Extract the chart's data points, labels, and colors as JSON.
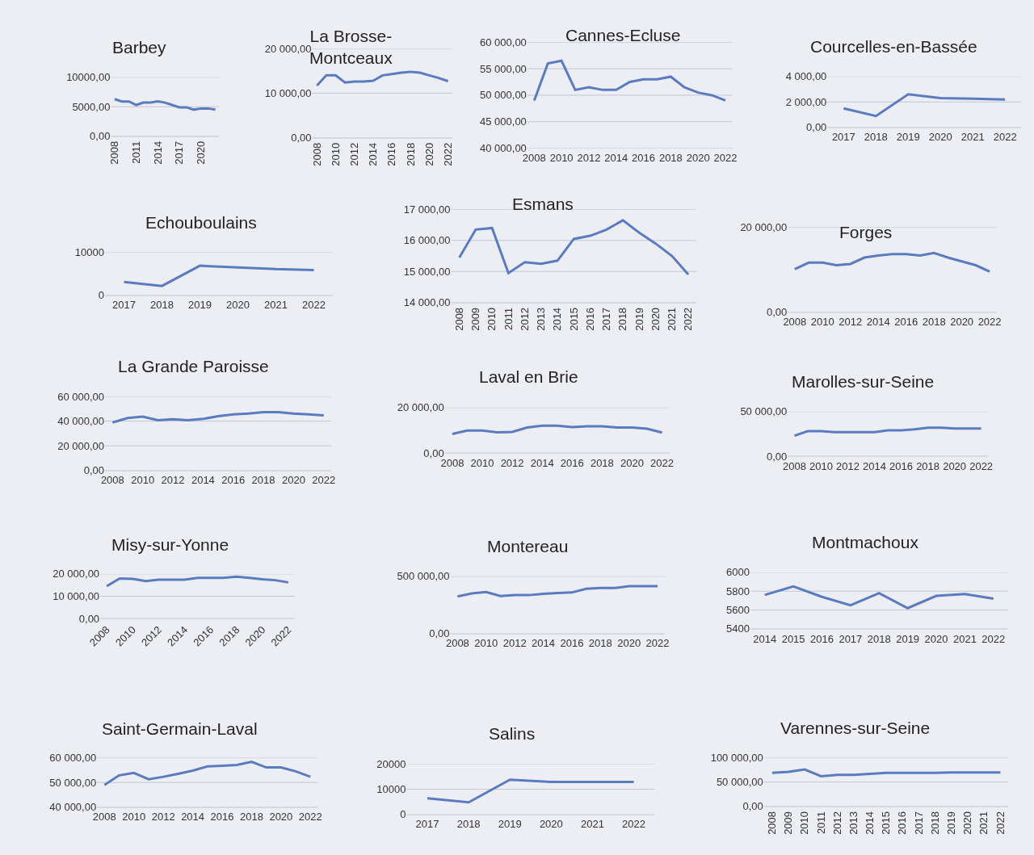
{
  "chart_data": [
    {
      "type": "line",
      "title": "Barbey",
      "x": [
        2008,
        2009,
        2010,
        2011,
        2012,
        2013,
        2014,
        2015,
        2016,
        2017,
        2018,
        2019,
        2020,
        2021,
        2022
      ],
      "values": [
        6300,
        5900,
        5900,
        5300,
        5700,
        5700,
        5900,
        5700,
        5300,
        4900,
        4900,
        4500,
        4700,
        4700,
        4500
      ],
      "color": "#5b7bc0",
      "xlim": [
        2007.5,
        2022.5
      ],
      "xticks": [
        2008,
        2011,
        2014,
        2017,
        2020
      ],
      "ylim": [
        0,
        10000
      ],
      "yticks": [
        {
          "value": 0,
          "label": "0,00"
        },
        {
          "value": 5000,
          "label": "5000,00"
        },
        {
          "value": 10000,
          "label": "10000,00"
        }
      ],
      "grid": "y"
    },
    {
      "type": "line",
      "title": "La Brosse-\nMontceaux",
      "x": [
        2008,
        2009,
        2010,
        2011,
        2012,
        2013,
        2014,
        2015,
        2016,
        2017,
        2018,
        2019,
        2020,
        2021,
        2022
      ],
      "values": [
        11700,
        14000,
        14000,
        12400,
        12600,
        12600,
        12800,
        14000,
        14300,
        14600,
        14800,
        14600,
        14000,
        13400,
        12700
      ],
      "color": "#5b7bc0",
      "xlim": [
        2007.5,
        2022.5
      ],
      "xticks": [
        2008,
        2010,
        2012,
        2014,
        2016,
        2018,
        2020,
        2022
      ],
      "ylim": [
        0,
        20000
      ],
      "yticks": [
        {
          "value": 0,
          "label": "0,00"
        },
        {
          "value": 10000,
          "label": "10 000,00"
        },
        {
          "value": 20000,
          "label": "20 000,00"
        }
      ],
      "grid": "y"
    },
    {
      "type": "line",
      "title": "Cannes-Ecluse",
      "x": [
        2008,
        2009,
        2010,
        2011,
        2012,
        2013,
        2014,
        2015,
        2016,
        2017,
        2018,
        2019,
        2020,
        2021,
        2022
      ],
      "values": [
        49000,
        56000,
        56500,
        51000,
        51500,
        51000,
        51000,
        52500,
        53000,
        53000,
        53500,
        51500,
        50500,
        50000,
        49000
      ],
      "color": "#5b7bc0",
      "xlim": [
        2007.5,
        2022.5
      ],
      "xticks": [
        2008,
        2010,
        2012,
        2014,
        2016,
        2018,
        2020,
        2022
      ],
      "ylim": [
        40000,
        60000
      ],
      "yticks": [
        {
          "value": 40000,
          "label": "40 000,00"
        },
        {
          "value": 45000,
          "label": "45 000,00"
        },
        {
          "value": 50000,
          "label": "50 000,00"
        },
        {
          "value": 55000,
          "label": "55 000,00"
        },
        {
          "value": 60000,
          "label": "60 000,00"
        }
      ],
      "grid": "y"
    },
    {
      "type": "line",
      "title": "Courcelles-en-Bassée",
      "x": [
        2017,
        2018,
        2019,
        2020,
        2021,
        2022
      ],
      "values": [
        1500,
        900,
        2600,
        2300,
        2250,
        2200
      ],
      "color": "#5b7bc0",
      "xlim": [
        2016.5,
        2022.5
      ],
      "xticks": [
        2017,
        2018,
        2019,
        2020,
        2021,
        2022
      ],
      "ylim": [
        0,
        4000
      ],
      "yticks": [
        {
          "value": 0,
          "label": "0,00"
        },
        {
          "value": 2000,
          "label": "2 000,00"
        },
        {
          "value": 4000,
          "label": "4 000,00"
        }
      ],
      "grid": "y"
    },
    {
      "type": "line",
      "title": "Echouboulains",
      "x": [
        2017,
        2018,
        2019,
        2020,
        2021,
        2022
      ],
      "values": [
        3100,
        2200,
        6900,
        6500,
        6100,
        5900
      ],
      "color": "#5b7bc0",
      "xlim": [
        2016.5,
        2022.5
      ],
      "xticks": [
        2017,
        2018,
        2019,
        2020,
        2021,
        2022
      ],
      "ylim": [
        0,
        10000
      ],
      "yticks": [
        0,
        10000
      ],
      "grid": "y"
    },
    {
      "type": "line",
      "title": "Esmans",
      "x": [
        2008,
        2009,
        2010,
        2011,
        2012,
        2013,
        2014,
        2015,
        2016,
        2017,
        2018,
        2019,
        2020,
        2021,
        2022
      ],
      "values": [
        15450,
        16350,
        16400,
        14950,
        15300,
        15250,
        15350,
        16050,
        16150,
        16350,
        16650,
        16250,
        15900,
        15500,
        14900
      ],
      "color": "#5b7bc0",
      "xlim": [
        2007.5,
        2022.5
      ],
      "xticks": [
        2008,
        2009,
        2010,
        2011,
        2012,
        2013,
        2014,
        2015,
        2016,
        2017,
        2018,
        2019,
        2020,
        2021,
        2022
      ],
      "ylim": [
        14000,
        17000
      ],
      "yticks": [
        {
          "value": 14000,
          "label": "14 000,00"
        },
        {
          "value": 15000,
          "label": "15 000,00"
        },
        {
          "value": 16000,
          "label": "16 000,00"
        },
        {
          "value": 17000,
          "label": "17 000,00"
        }
      ],
      "grid": "y"
    },
    {
      "type": "line",
      "title": "Forges",
      "x": [
        2008,
        2009,
        2010,
        2011,
        2012,
        2013,
        2014,
        2015,
        2016,
        2017,
        2018,
        2019,
        2020,
        2021,
        2022
      ],
      "values": [
        10100,
        11600,
        11600,
        11000,
        11300,
        12800,
        13300,
        13600,
        13600,
        13300,
        13900,
        12800,
        11900,
        11000,
        9500
      ],
      "color": "#5b7bc0",
      "xlim": [
        2007.5,
        2022.5
      ],
      "xticks": [
        2008,
        2010,
        2012,
        2014,
        2016,
        2018,
        2020,
        2022
      ],
      "ylim": [
        0,
        20000
      ],
      "yticks": [
        {
          "value": 0,
          "label": "0,00"
        },
        {
          "value": 20000,
          "label": "20 000,00"
        }
      ],
      "grid": "y"
    },
    {
      "type": "line",
      "title": "La Grande Paroisse",
      "x": [
        2008,
        2009,
        2010,
        2011,
        2012,
        2013,
        2014,
        2015,
        2016,
        2017,
        2018,
        2019,
        2020,
        2021,
        2022
      ],
      "values": [
        38900,
        42500,
        43600,
        40700,
        41500,
        40700,
        41800,
        44000,
        45500,
        46200,
        47300,
        47300,
        46200,
        45500,
        44700
      ],
      "color": "#5b7bc0",
      "xlim": [
        2007.5,
        2022.5
      ],
      "xticks": [
        2008,
        2010,
        2012,
        2014,
        2016,
        2018,
        2020,
        2022
      ],
      "ylim": [
        0,
        60000
      ],
      "yticks": [
        {
          "value": 0,
          "label": "0,00"
        },
        {
          "value": 20000,
          "label": "20 000,00"
        },
        {
          "value": 40000,
          "label": "40 000,00"
        },
        {
          "value": 60000,
          "label": "60 000,00"
        }
      ],
      "grid": "y"
    },
    {
      "type": "line",
      "title": "Laval en Brie",
      "x": [
        2008,
        2009,
        2010,
        2011,
        2012,
        2013,
        2014,
        2015,
        2016,
        2017,
        2018,
        2019,
        2020,
        2021,
        2022
      ],
      "values": [
        8400,
        9900,
        9900,
        9100,
        9300,
        11200,
        12000,
        12000,
        11400,
        11800,
        11800,
        11200,
        11200,
        10700,
        9000
      ],
      "color": "#5b7bc0",
      "xlim": [
        2007.5,
        2022.5
      ],
      "xticks": [
        2008,
        2010,
        2012,
        2014,
        2016,
        2018,
        2020,
        2022
      ],
      "ylim": [
        0,
        20000
      ],
      "yticks": [
        {
          "value": 0,
          "label": "0,00"
        },
        {
          "value": 20000,
          "label": "20 000,00"
        }
      ],
      "grid": "y"
    },
    {
      "type": "line",
      "title": "Marolles-sur-Seine",
      "x": [
        2008,
        2009,
        2010,
        2011,
        2012,
        2013,
        2014,
        2015,
        2016,
        2017,
        2018,
        2019,
        2020,
        2021,
        2022
      ],
      "values": [
        23000,
        28000,
        28000,
        27000,
        27000,
        27000,
        27000,
        29000,
        29000,
        30000,
        32000,
        32000,
        31000,
        31000,
        31000
      ],
      "color": "#5b7bc0",
      "xlim": [
        2007.5,
        2022.5
      ],
      "xticks": [
        2008,
        2010,
        2012,
        2014,
        2016,
        2018,
        2020,
        2022
      ],
      "ylim": [
        0,
        50000
      ],
      "yticks": [
        {
          "value": 0,
          "label": "0,00"
        },
        {
          "value": 50000,
          "label": "50 000,00"
        }
      ],
      "grid": "y"
    },
    {
      "type": "line",
      "title": "Misy-sur-Yonne",
      "x": [
        2008,
        2009,
        2010,
        2011,
        2012,
        2013,
        2014,
        2015,
        2016,
        2017,
        2018,
        2019,
        2020,
        2021,
        2022
      ],
      "values": [
        14500,
        18000,
        17800,
        16800,
        17400,
        17400,
        17400,
        18200,
        18200,
        18200,
        18800,
        18200,
        17600,
        17200,
        16200
      ],
      "color": "#5b7bc0",
      "xlim": [
        2007.5,
        2022.5
      ],
      "xticks": [
        2008,
        2010,
        2012,
        2014,
        2016,
        2018,
        2020,
        2022
      ],
      "ylim": [
        0,
        20000
      ],
      "yticks": [
        {
          "value": 0,
          "label": "0,00"
        },
        {
          "value": 10000,
          "label": "10 000,00"
        },
        {
          "value": 20000,
          "label": "20 000,00"
        }
      ],
      "grid": "y"
    },
    {
      "type": "line",
      "title": "Montereau",
      "x": [
        2008,
        2009,
        2010,
        2011,
        2012,
        2013,
        2014,
        2015,
        2016,
        2017,
        2018,
        2019,
        2020,
        2021,
        2022
      ],
      "values": [
        324000,
        351000,
        363000,
        328000,
        336000,
        336000,
        348000,
        355000,
        359000,
        391000,
        398000,
        398000,
        414000,
        414000,
        414000
      ],
      "color": "#5b7bc0",
      "xlim": [
        2007.5,
        2022.5
      ],
      "xticks": [
        2008,
        2010,
        2012,
        2014,
        2016,
        2018,
        2020,
        2022
      ],
      "ylim": [
        0,
        500000
      ],
      "yticks": [
        {
          "value": 0,
          "label": "0,00"
        },
        {
          "value": 500000,
          "label": "500 000,00"
        }
      ],
      "grid": "y"
    },
    {
      "type": "line",
      "title": "Montmachoux",
      "x": [
        2014,
        2015,
        2016,
        2017,
        2018,
        2019,
        2020,
        2021,
        2022
      ],
      "values": [
        5760,
        5850,
        5740,
        5650,
        5780,
        5620,
        5750,
        5770,
        5720
      ],
      "color": "#5b7bc0",
      "xlim": [
        2013.5,
        2022.5
      ],
      "xticks": [
        2014,
        2015,
        2016,
        2017,
        2018,
        2019,
        2020,
        2021,
        2022
      ],
      "ylim": [
        5400,
        6000
      ],
      "yticks": [
        5400,
        5600,
        5800,
        6000
      ],
      "grid": "y"
    },
    {
      "type": "line",
      "title": "Saint-Germain-Laval",
      "x": [
        2008,
        2009,
        2010,
        2011,
        2012,
        2013,
        2014,
        2015,
        2016,
        2017,
        2018,
        2019,
        2020,
        2021,
        2022
      ],
      "values": [
        49000,
        52900,
        53900,
        51300,
        52300,
        53500,
        54800,
        56500,
        56800,
        57100,
        58400,
        56100,
        56100,
        54500,
        52300
      ],
      "color": "#5b7bc0",
      "xlim": [
        2007.5,
        2022.5
      ],
      "xticks": [
        2008,
        2010,
        2012,
        2014,
        2016,
        2018,
        2020,
        2022
      ],
      "ylim": [
        40000,
        60000
      ],
      "yticks": [
        {
          "value": 40000,
          "label": "40 000,00"
        },
        {
          "value": 50000,
          "label": "50 000,00"
        },
        {
          "value": 60000,
          "label": "60 000,00"
        }
      ],
      "grid": "y"
    },
    {
      "type": "line",
      "title": "Salins",
      "x": [
        2017,
        2018,
        2019,
        2020,
        2021,
        2022
      ],
      "values": [
        6400,
        4800,
        13800,
        12900,
        12900,
        12900
      ],
      "color": "#5b7bc0",
      "xlim": [
        2016.5,
        2022.5
      ],
      "xticks": [
        2017,
        2018,
        2019,
        2020,
        2021,
        2022
      ],
      "ylim": [
        0,
        20000
      ],
      "yticks": [
        0,
        10000,
        20000
      ],
      "grid": "y"
    },
    {
      "type": "line",
      "title": "Varennes-sur-Seine",
      "x": [
        2008,
        2009,
        2010,
        2011,
        2012,
        2013,
        2014,
        2015,
        2016,
        2017,
        2018,
        2019,
        2020,
        2021,
        2022
      ],
      "values": [
        69000,
        71000,
        76000,
        62000,
        65000,
        65000,
        67000,
        69000,
        69000,
        69000,
        69000,
        70000,
        70000,
        70000,
        70000
      ],
      "color": "#5b7bc0",
      "xlim": [
        2007.5,
        2022.5
      ],
      "xticks": [
        2008,
        2009,
        2010,
        2011,
        2012,
        2013,
        2014,
        2015,
        2016,
        2017,
        2018,
        2019,
        2020,
        2021,
        2022
      ],
      "ylim": [
        0,
        100000
      ],
      "yticks": [
        {
          "value": 0,
          "label": "0,00"
        },
        {
          "value": 50000,
          "label": "50 000,00"
        },
        {
          "value": 100000,
          "label": "100 000,00"
        }
      ],
      "grid": "y"
    }
  ]
}
